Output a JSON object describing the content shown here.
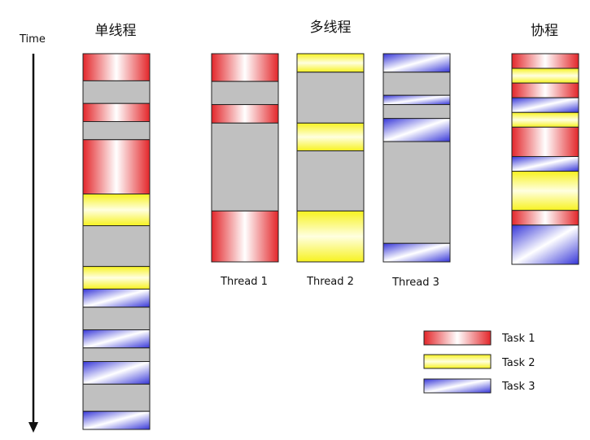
{
  "time_label": "Time",
  "titles": {
    "single": "单线程",
    "multi": "多线程",
    "coroutine": "协程"
  },
  "thread_labels": [
    "Thread 1",
    "Thread 2",
    "Thread 3"
  ],
  "legend": [
    {
      "task": "task1",
      "label": "Task 1"
    },
    {
      "task": "task2",
      "label": "Task 2"
    },
    {
      "task": "task3",
      "label": "Task 3"
    }
  ],
  "colors": {
    "task1": "#e8262a",
    "task2": "#f7f21f",
    "task3": "#3a3ae0",
    "idle": "#c0c0c0",
    "border": "#222222"
  },
  "timeline": {
    "single": [
      {
        "task": "task1",
        "start": 0.0,
        "end": 6.0
      },
      {
        "task": "idle",
        "start": 6.0,
        "end": 11.0
      },
      {
        "task": "task1",
        "start": 11.0,
        "end": 15.0
      },
      {
        "task": "idle",
        "start": 15.0,
        "end": 19.0
      },
      {
        "task": "task1",
        "start": 19.0,
        "end": 31.0
      },
      {
        "task": "task2",
        "start": 31.0,
        "end": 38.0
      },
      {
        "task": "idle",
        "start": 38.0,
        "end": 47.0
      },
      {
        "task": "task2",
        "start": 47.0,
        "end": 52.0
      },
      {
        "task": "task3",
        "start": 52.0,
        "end": 56.0
      },
      {
        "task": "idle",
        "start": 56.0,
        "end": 61.0
      },
      {
        "task": "task3",
        "start": 61.0,
        "end": 65.0
      },
      {
        "task": "idle",
        "start": 65.0,
        "end": 68.0
      },
      {
        "task": "task3",
        "start": 68.0,
        "end": 73.0
      },
      {
        "task": "idle",
        "start": 73.0,
        "end": 79.0
      },
      {
        "task": "task3",
        "start": 79.0,
        "end": 83.0
      }
    ],
    "threads": [
      [
        {
          "task": "task1",
          "start": 0.0,
          "end": 6.0
        },
        {
          "task": "idle",
          "start": 6.0,
          "end": 11.0
        },
        {
          "task": "task1",
          "start": 11.0,
          "end": 15.0
        },
        {
          "task": "idle",
          "start": 15.0,
          "end": 34.0
        },
        {
          "task": "task1",
          "start": 34.0,
          "end": 45.0
        }
      ],
      [
        {
          "task": "task2",
          "start": 0.0,
          "end": 4.0
        },
        {
          "task": "idle",
          "start": 4.0,
          "end": 15.0
        },
        {
          "task": "task2",
          "start": 15.0,
          "end": 21.0
        },
        {
          "task": "idle",
          "start": 21.0,
          "end": 34.0
        },
        {
          "task": "task2",
          "start": 34.0,
          "end": 45.0
        }
      ],
      [
        {
          "task": "task3",
          "start": 0.0,
          "end": 4.0
        },
        {
          "task": "idle",
          "start": 4.0,
          "end": 9.0
        },
        {
          "task": "task3",
          "start": 9.0,
          "end": 11.0
        },
        {
          "task": "idle",
          "start": 11.0,
          "end": 14.0
        },
        {
          "task": "task3",
          "start": 14.0,
          "end": 19.0
        },
        {
          "task": "idle",
          "start": 19.0,
          "end": 41.0
        },
        {
          "task": "task3",
          "start": 41.0,
          "end": 45.0
        }
      ]
    ],
    "coroutine": [
      {
        "task": "task1",
        "start": 0.0,
        "end": 3.0
      },
      {
        "task": "task2",
        "start": 3.0,
        "end": 6.0
      },
      {
        "task": "task1",
        "start": 6.0,
        "end": 9.0
      },
      {
        "task": "task3",
        "start": 9.0,
        "end": 12.0
      },
      {
        "task": "task2",
        "start": 12.0,
        "end": 15.0
      },
      {
        "task": "task1",
        "start": 15.0,
        "end": 21.0
      },
      {
        "task": "task3",
        "start": 21.0,
        "end": 24.0
      },
      {
        "task": "task2",
        "start": 24.0,
        "end": 32.0
      },
      {
        "task": "task1",
        "start": 32.0,
        "end": 35.0
      },
      {
        "task": "task3",
        "start": 35.0,
        "end": 43.0
      }
    ]
  }
}
